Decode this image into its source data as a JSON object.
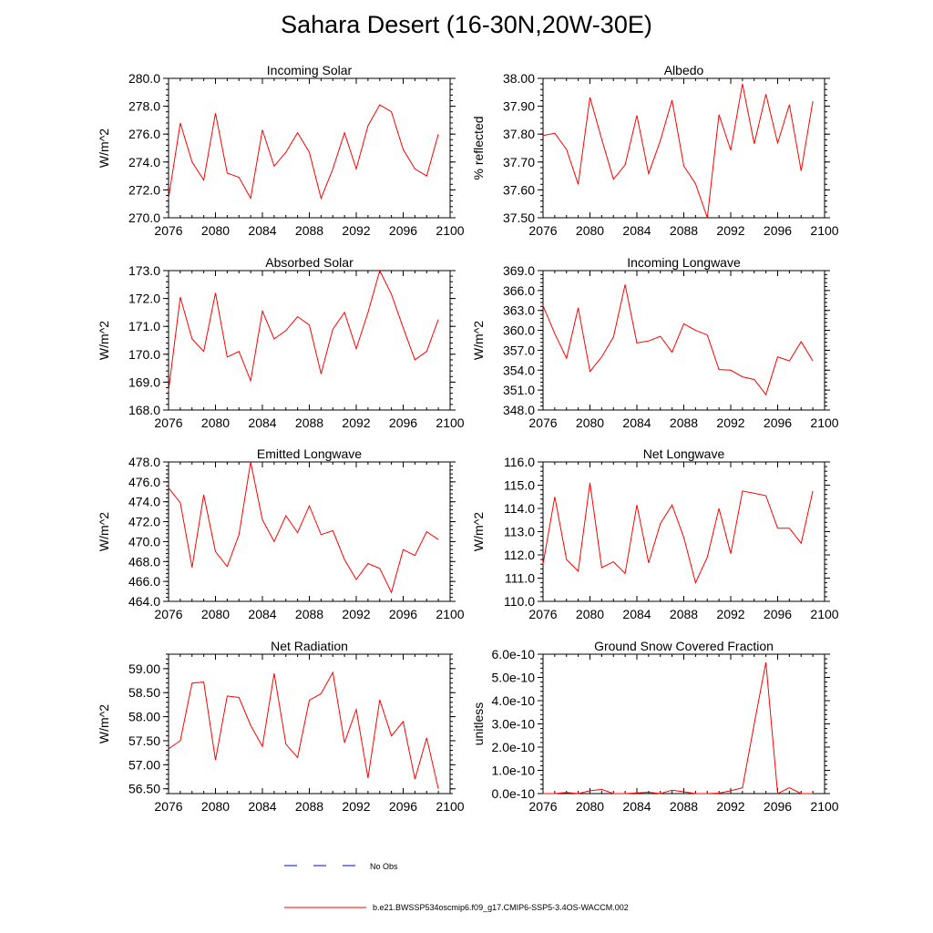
{
  "title": "Sahara Desert (16-30N,20W-30E)",
  "colors": {
    "model": "#ff0000",
    "obs": "#0000ff",
    "axis": "#000000"
  },
  "legend": {
    "obs_label": "No Obs",
    "model_label": "b.e21.BWSSP534oscmip6.f09_g17.CMIP6-SSP5-3.4OS-WACCM.002"
  },
  "chart_data": [
    {
      "type": "line",
      "title": "Incoming Solar",
      "ylabel": "W/m^2",
      "xlim": [
        2076,
        2100
      ],
      "ylim": [
        270.0,
        280.0
      ],
      "xticks": [
        2076,
        2080,
        2084,
        2088,
        2092,
        2096,
        2100
      ],
      "yticks": [
        "270.0",
        "272.0",
        "274.0",
        "276.0",
        "278.0",
        "280.0"
      ],
      "x": [
        2076,
        2077,
        2078,
        2079,
        2080,
        2081,
        2082,
        2083,
        2084,
        2085,
        2086,
        2087,
        2088,
        2089,
        2090,
        2091,
        2092,
        2093,
        2094,
        2095,
        2096,
        2097,
        2098,
        2099
      ],
      "values": [
        271.4,
        276.8,
        274.0,
        272.7,
        277.5,
        273.2,
        272.9,
        271.4,
        276.3,
        273.7,
        274.7,
        276.1,
        274.7,
        271.4,
        273.5,
        276.1,
        273.5,
        276.6,
        278.1,
        277.6,
        274.9,
        273.5,
        273.0,
        276.0
      ]
    },
    {
      "type": "line",
      "title": "Albedo",
      "ylabel": "% reflected",
      "xlim": [
        2076,
        2100
      ],
      "ylim": [
        37.5,
        38.0
      ],
      "xticks": [
        2076,
        2080,
        2084,
        2088,
        2092,
        2096,
        2100
      ],
      "yticks": [
        "37.50",
        "37.60",
        "37.70",
        "37.80",
        "37.90",
        "38.00"
      ],
      "x": [
        2076,
        2077,
        2078,
        2079,
        2080,
        2081,
        2082,
        2083,
        2084,
        2085,
        2086,
        2087,
        2088,
        2089,
        2090,
        2091,
        2092,
        2093,
        2094,
        2095,
        2096,
        2097,
        2098,
        2099
      ],
      "values": [
        37.795,
        37.803,
        37.745,
        37.62,
        37.932,
        37.782,
        37.638,
        37.69,
        37.867,
        37.658,
        37.777,
        37.922,
        37.686,
        37.622,
        37.5,
        37.87,
        37.742,
        37.98,
        37.765,
        37.943,
        37.768,
        37.906,
        37.668,
        37.918
      ]
    },
    {
      "type": "line",
      "title": "Absorbed Solar",
      "ylabel": "W/m^2",
      "xlim": [
        2076,
        2100
      ],
      "ylim": [
        168.0,
        173.0
      ],
      "xticks": [
        2076,
        2080,
        2084,
        2088,
        2092,
        2096,
        2100
      ],
      "yticks": [
        "168.0",
        "169.0",
        "170.0",
        "171.0",
        "172.0",
        "173.0"
      ],
      "x": [
        2076,
        2077,
        2078,
        2079,
        2080,
        2081,
        2082,
        2083,
        2084,
        2085,
        2086,
        2087,
        2088,
        2089,
        2090,
        2091,
        2092,
        2093,
        2094,
        2095,
        2096,
        2097,
        2098,
        2099
      ],
      "values": [
        168.7,
        172.05,
        170.55,
        170.1,
        172.2,
        169.9,
        170.1,
        169.05,
        171.55,
        170.55,
        170.85,
        171.35,
        171.05,
        169.3,
        170.9,
        171.5,
        170.2,
        171.5,
        173.0,
        172.15,
        170.95,
        169.8,
        170.1,
        171.25
      ]
    },
    {
      "type": "line",
      "title": "Incoming Longwave",
      "ylabel": "W/m^2",
      "xlim": [
        2076,
        2100
      ],
      "ylim": [
        348.0,
        369.0
      ],
      "xticks": [
        2076,
        2080,
        2084,
        2088,
        2092,
        2096,
        2100
      ],
      "yticks": [
        "348.0",
        "351.0",
        "354.0",
        "357.0",
        "360.0",
        "363.0",
        "366.0",
        "369.0"
      ],
      "x": [
        2076,
        2077,
        2078,
        2079,
        2080,
        2081,
        2082,
        2083,
        2084,
        2085,
        2086,
        2087,
        2088,
        2089,
        2090,
        2091,
        2092,
        2093,
        2094,
        2095,
        2096,
        2097,
        2098,
        2099
      ],
      "values": [
        363.7,
        359.5,
        355.8,
        363.4,
        353.8,
        356.0,
        359.0,
        366.9,
        358.1,
        358.4,
        359.1,
        356.7,
        361.0,
        360.0,
        359.3,
        354.1,
        354.0,
        353.0,
        352.6,
        350.3,
        356.0,
        355.4,
        358.3,
        355.4
      ]
    },
    {
      "type": "line",
      "title": "Emitted Longwave",
      "ylabel": "W/m^2",
      "xlim": [
        2076,
        2100
      ],
      "ylim": [
        464.0,
        478.0
      ],
      "xticks": [
        2076,
        2080,
        2084,
        2088,
        2092,
        2096,
        2100
      ],
      "yticks": [
        "464.0",
        "466.0",
        "468.0",
        "470.0",
        "472.0",
        "474.0",
        "476.0",
        "478.0"
      ],
      "x": [
        2076,
        2077,
        2078,
        2079,
        2080,
        2081,
        2082,
        2083,
        2084,
        2085,
        2086,
        2087,
        2088,
        2089,
        2090,
        2091,
        2092,
        2093,
        2094,
        2095,
        2096,
        2097,
        2098,
        2099
      ],
      "values": [
        475.4,
        473.9,
        467.4,
        474.7,
        469.0,
        467.5,
        470.7,
        478.0,
        472.2,
        470.0,
        472.6,
        470.9,
        473.6,
        470.7,
        471.1,
        468.2,
        466.2,
        467.8,
        467.3,
        464.9,
        469.2,
        468.6,
        471.0,
        470.2
      ]
    },
    {
      "type": "line",
      "title": "Net Longwave",
      "ylabel": "W/m^2",
      "xlim": [
        2076,
        2100
      ],
      "ylim": [
        110.0,
        116.0
      ],
      "xticks": [
        2076,
        2080,
        2084,
        2088,
        2092,
        2096,
        2100
      ],
      "yticks": [
        "110.0",
        "111.0",
        "112.0",
        "113.0",
        "114.0",
        "115.0",
        "116.0"
      ],
      "x": [
        2076,
        2077,
        2078,
        2079,
        2080,
        2081,
        2082,
        2083,
        2084,
        2085,
        2086,
        2087,
        2088,
        2089,
        2090,
        2091,
        2092,
        2093,
        2094,
        2095,
        2096,
        2097,
        2098,
        2099
      ],
      "values": [
        111.6,
        114.5,
        111.8,
        111.3,
        115.1,
        111.45,
        111.7,
        111.2,
        114.15,
        111.65,
        113.35,
        114.15,
        112.75,
        110.8,
        111.9,
        114.0,
        112.05,
        114.75,
        114.65,
        114.55,
        113.15,
        113.15,
        112.5,
        114.75
      ]
    },
    {
      "type": "line",
      "title": "Net Radiation",
      "ylabel": "W/m^2",
      "xlim": [
        2076,
        2100
      ],
      "ylim": [
        56.4,
        59.3
      ],
      "xticks": [
        2076,
        2080,
        2084,
        2088,
        2092,
        2096,
        2100
      ],
      "yticks": [
        "56.50",
        "57.00",
        "57.50",
        "58.00",
        "58.50",
        "59.00"
      ],
      "x": [
        2076,
        2077,
        2078,
        2079,
        2080,
        2081,
        2082,
        2083,
        2084,
        2085,
        2086,
        2087,
        2088,
        2089,
        2090,
        2091,
        2092,
        2093,
        2094,
        2095,
        2096,
        2097,
        2098,
        2099
      ],
      "values": [
        57.33,
        57.5,
        58.7,
        58.72,
        57.1,
        58.43,
        58.4,
        57.82,
        57.38,
        58.9,
        57.43,
        57.15,
        58.34,
        58.48,
        58.92,
        57.46,
        58.15,
        56.72,
        58.35,
        57.6,
        57.9,
        56.7,
        57.56,
        56.5
      ]
    },
    {
      "type": "line",
      "title": "Ground Snow Covered Fraction",
      "ylabel": "unitless",
      "xlim": [
        2076,
        2100
      ],
      "ylim": [
        0,
        6e-10
      ],
      "xticks": [
        2076,
        2080,
        2084,
        2088,
        2092,
        2096,
        2100
      ],
      "yticks": [
        "0.0e-10",
        "1.0e-10",
        "2.0e-10",
        "3.0e-10",
        "4.0e-10",
        "5.0e-10",
        "6.0e-10"
      ],
      "x": [
        2076,
        2077,
        2078,
        2079,
        2080,
        2081,
        2082,
        2083,
        2084,
        2085,
        2086,
        2087,
        2088,
        2089,
        2090,
        2091,
        2092,
        2093,
        2094,
        2095,
        2096,
        2097,
        2098,
        2099
      ],
      "values": [
        0,
        0,
        5e-12,
        0,
        1.2e-11,
        1.8e-11,
        0,
        0,
        3e-12,
        6e-12,
        0,
        1.5e-11,
        8e-12,
        0,
        0,
        2e-12,
        1.2e-11,
        2.5e-11,
        3e-10,
        5.65e-10,
        0,
        2.5e-11,
        0,
        0
      ]
    }
  ]
}
